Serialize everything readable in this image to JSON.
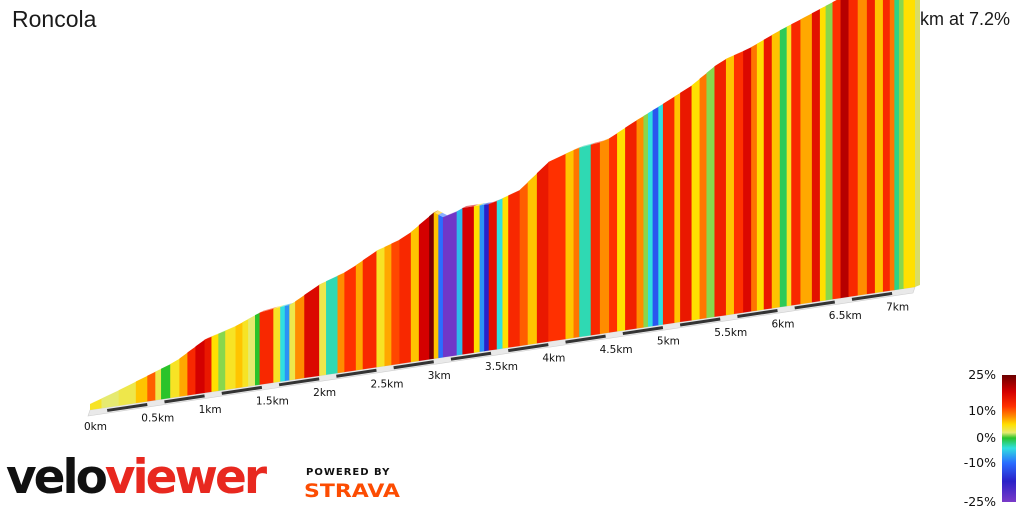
{
  "header": {
    "segment_name": "Roncola",
    "summary": "7.2 km at 7.2%"
  },
  "chart_data": {
    "type": "area",
    "distance_unit": "km",
    "total_distance_km": 7.2,
    "average_gradient_pct": 7.2,
    "x_ticks": [
      "0km",
      "0.5km",
      "1km",
      "1.5km",
      "2km",
      "2.5km",
      "3km",
      "3.5km",
      "4km",
      "4.5km",
      "5km",
      "5.5km",
      "6km",
      "6.5km",
      "7km"
    ],
    "x_tick_values_km": [
      0,
      0.5,
      1,
      1.5,
      2,
      2.5,
      3,
      3.5,
      4,
      4.5,
      5,
      5.5,
      6,
      6.5,
      7
    ],
    "color_scale": {
      "labels": [
        "25%",
        "10%",
        "0%",
        "-10%",
        "-25%"
      ],
      "values": [
        25,
        10,
        0,
        -10,
        -25
      ],
      "colors": [
        "#6b0000",
        "#d40000",
        "#ff3000",
        "#ff8c00",
        "#ffe000",
        "#e6ea70",
        "#2ac32a",
        "#30e0e0",
        "#2a6dff",
        "#2a20c8",
        "#7a3ac8"
      ]
    },
    "profile_km": [
      0,
      0.25,
      0.5,
      0.75,
      1,
      1.25,
      1.5,
      1.75,
      2,
      2.25,
      2.5,
      2.75,
      3,
      3.1,
      3.25,
      3.5,
      3.75,
      4,
      4.25,
      4.5,
      4.75,
      5,
      5.25,
      5.5,
      5.75,
      6,
      6.25,
      6.5,
      6.75,
      7,
      7.2
    ],
    "profile_elevation_m": [
      0,
      12,
      25,
      38,
      60,
      70,
      85,
      88,
      108,
      120,
      140,
      152,
      178,
      168,
      178,
      178,
      190,
      220,
      232,
      236,
      255,
      272,
      290,
      315,
      326,
      342,
      356,
      370,
      385,
      400,
      408
    ],
    "gradient_bands": [
      {
        "from_km": 0.0,
        "to_km": 0.1,
        "gradient_pct": 4
      },
      {
        "from_km": 0.1,
        "to_km": 0.25,
        "gradient_pct": 2
      },
      {
        "from_km": 0.25,
        "to_km": 0.4,
        "gradient_pct": 3
      },
      {
        "from_km": 0.4,
        "to_km": 0.5,
        "gradient_pct": 6
      },
      {
        "from_km": 0.5,
        "to_km": 0.57,
        "gradient_pct": 10
      },
      {
        "from_km": 0.57,
        "to_km": 0.62,
        "gradient_pct": 3
      },
      {
        "from_km": 0.62,
        "to_km": 0.7,
        "gradient_pct": 0
      },
      {
        "from_km": 0.7,
        "to_km": 0.78,
        "gradient_pct": 4
      },
      {
        "from_km": 0.78,
        "to_km": 0.85,
        "gradient_pct": 7
      },
      {
        "from_km": 0.85,
        "to_km": 0.92,
        "gradient_pct": 13
      },
      {
        "from_km": 0.92,
        "to_km": 1.0,
        "gradient_pct": 18
      },
      {
        "from_km": 1.0,
        "to_km": 1.06,
        "gradient_pct": 15
      },
      {
        "from_km": 1.06,
        "to_km": 1.12,
        "gradient_pct": 5
      },
      {
        "from_km": 1.12,
        "to_km": 1.18,
        "gradient_pct": 1
      },
      {
        "from_km": 1.18,
        "to_km": 1.27,
        "gradient_pct": 4
      },
      {
        "from_km": 1.27,
        "to_km": 1.33,
        "gradient_pct": 6
      },
      {
        "from_km": 1.33,
        "to_km": 1.38,
        "gradient_pct": 4
      },
      {
        "from_km": 1.38,
        "to_km": 1.44,
        "gradient_pct": 2
      },
      {
        "from_km": 1.44,
        "to_km": 1.48,
        "gradient_pct": 0
      },
      {
        "from_km": 1.48,
        "to_km": 1.6,
        "gradient_pct": 13
      },
      {
        "from_km": 1.6,
        "to_km": 1.66,
        "gradient_pct": 4
      },
      {
        "from_km": 1.66,
        "to_km": 1.7,
        "gradient_pct": -4
      },
      {
        "from_km": 1.7,
        "to_km": 1.74,
        "gradient_pct": -8
      },
      {
        "from_km": 1.74,
        "to_km": 1.79,
        "gradient_pct": 3
      },
      {
        "from_km": 1.79,
        "to_km": 1.87,
        "gradient_pct": 8
      },
      {
        "from_km": 1.87,
        "to_km": 2.0,
        "gradient_pct": 17
      },
      {
        "from_km": 2.0,
        "to_km": 2.06,
        "gradient_pct": 3
      },
      {
        "from_km": 2.06,
        "to_km": 2.16,
        "gradient_pct": -3
      },
      {
        "from_km": 2.16,
        "to_km": 2.22,
        "gradient_pct": 8
      },
      {
        "from_km": 2.22,
        "to_km": 2.32,
        "gradient_pct": 12
      },
      {
        "from_km": 2.32,
        "to_km": 2.38,
        "gradient_pct": 7
      },
      {
        "from_km": 2.38,
        "to_km": 2.5,
        "gradient_pct": 13
      },
      {
        "from_km": 2.5,
        "to_km": 2.57,
        "gradient_pct": 4
      },
      {
        "from_km": 2.57,
        "to_km": 2.63,
        "gradient_pct": 7
      },
      {
        "from_km": 2.63,
        "to_km": 2.7,
        "gradient_pct": 11
      },
      {
        "from_km": 2.7,
        "to_km": 2.8,
        "gradient_pct": 13
      },
      {
        "from_km": 2.8,
        "to_km": 2.87,
        "gradient_pct": 6
      },
      {
        "from_km": 2.87,
        "to_km": 2.96,
        "gradient_pct": 18
      },
      {
        "from_km": 2.96,
        "to_km": 3.0,
        "gradient_pct": 24
      },
      {
        "from_km": 3.0,
        "to_km": 3.04,
        "gradient_pct": 6
      },
      {
        "from_km": 3.04,
        "to_km": 3.08,
        "gradient_pct": -10
      },
      {
        "from_km": 3.08,
        "to_km": 3.2,
        "gradient_pct": -24
      },
      {
        "from_km": 3.2,
        "to_km": 3.25,
        "gradient_pct": -6
      },
      {
        "from_km": 3.25,
        "to_km": 3.35,
        "gradient_pct": 18
      },
      {
        "from_km": 3.35,
        "to_km": 3.4,
        "gradient_pct": 5
      },
      {
        "from_km": 3.4,
        "to_km": 3.44,
        "gradient_pct": -8
      },
      {
        "from_km": 3.44,
        "to_km": 3.48,
        "gradient_pct": -17
      },
      {
        "from_km": 3.48,
        "to_km": 3.55,
        "gradient_pct": 16
      },
      {
        "from_km": 3.55,
        "to_km": 3.6,
        "gradient_pct": -4
      },
      {
        "from_km": 3.6,
        "to_km": 3.65,
        "gradient_pct": 5
      },
      {
        "from_km": 3.65,
        "to_km": 3.75,
        "gradient_pct": 13
      },
      {
        "from_km": 3.75,
        "to_km": 3.82,
        "gradient_pct": 10
      },
      {
        "from_km": 3.82,
        "to_km": 3.9,
        "gradient_pct": 6
      },
      {
        "from_km": 3.9,
        "to_km": 4.0,
        "gradient_pct": 15
      },
      {
        "from_km": 4.0,
        "to_km": 4.15,
        "gradient_pct": 12
      },
      {
        "from_km": 4.15,
        "to_km": 4.22,
        "gradient_pct": 6
      },
      {
        "from_km": 4.22,
        "to_km": 4.27,
        "gradient_pct": 9
      },
      {
        "from_km": 4.27,
        "to_km": 4.37,
        "gradient_pct": -3
      },
      {
        "from_km": 4.37,
        "to_km": 4.45,
        "gradient_pct": 13
      },
      {
        "from_km": 4.45,
        "to_km": 4.53,
        "gradient_pct": 8
      },
      {
        "from_km": 4.53,
        "to_km": 4.6,
        "gradient_pct": 12
      },
      {
        "from_km": 4.6,
        "to_km": 4.67,
        "gradient_pct": 5
      },
      {
        "from_km": 4.67,
        "to_km": 4.77,
        "gradient_pct": 14
      },
      {
        "from_km": 4.77,
        "to_km": 4.83,
        "gradient_pct": 8
      },
      {
        "from_km": 4.83,
        "to_km": 4.87,
        "gradient_pct": 1
      },
      {
        "from_km": 4.87,
        "to_km": 4.91,
        "gradient_pct": -4
      },
      {
        "from_km": 4.91,
        "to_km": 4.96,
        "gradient_pct": -12
      },
      {
        "from_km": 4.96,
        "to_km": 5.0,
        "gradient_pct": -4
      },
      {
        "from_km": 5.0,
        "to_km": 5.1,
        "gradient_pct": 13
      },
      {
        "from_km": 5.1,
        "to_km": 5.15,
        "gradient_pct": 6
      },
      {
        "from_km": 5.15,
        "to_km": 5.25,
        "gradient_pct": 15
      },
      {
        "from_km": 5.25,
        "to_km": 5.32,
        "gradient_pct": 5
      },
      {
        "from_km": 5.32,
        "to_km": 5.38,
        "gradient_pct": 9
      },
      {
        "from_km": 5.38,
        "to_km": 5.45,
        "gradient_pct": 1
      },
      {
        "from_km": 5.45,
        "to_km": 5.55,
        "gradient_pct": 14
      },
      {
        "from_km": 5.55,
        "to_km": 5.62,
        "gradient_pct": 6
      },
      {
        "from_km": 5.62,
        "to_km": 5.7,
        "gradient_pct": 12
      },
      {
        "from_km": 5.7,
        "to_km": 5.77,
        "gradient_pct": 17
      },
      {
        "from_km": 5.77,
        "to_km": 5.82,
        "gradient_pct": 9
      },
      {
        "from_km": 5.82,
        "to_km": 5.88,
        "gradient_pct": 5
      },
      {
        "from_km": 5.88,
        "to_km": 5.95,
        "gradient_pct": 15
      },
      {
        "from_km": 5.95,
        "to_km": 6.02,
        "gradient_pct": 6
      },
      {
        "from_km": 6.02,
        "to_km": 6.08,
        "gradient_pct": -1
      },
      {
        "from_km": 6.08,
        "to_km": 6.12,
        "gradient_pct": 4
      },
      {
        "from_km": 6.12,
        "to_km": 6.2,
        "gradient_pct": 13
      },
      {
        "from_km": 6.2,
        "to_km": 6.3,
        "gradient_pct": 7
      },
      {
        "from_km": 6.3,
        "to_km": 6.37,
        "gradient_pct": 16
      },
      {
        "from_km": 6.37,
        "to_km": 6.42,
        "gradient_pct": 5
      },
      {
        "from_km": 6.42,
        "to_km": 6.48,
        "gradient_pct": 1
      },
      {
        "from_km": 6.48,
        "to_km": 6.55,
        "gradient_pct": 12
      },
      {
        "from_km": 6.55,
        "to_km": 6.62,
        "gradient_pct": 20
      },
      {
        "from_km": 6.62,
        "to_km": 6.7,
        "gradient_pct": 13
      },
      {
        "from_km": 6.7,
        "to_km": 6.78,
        "gradient_pct": 8
      },
      {
        "from_km": 6.78,
        "to_km": 6.85,
        "gradient_pct": 14
      },
      {
        "from_km": 6.85,
        "to_km": 6.92,
        "gradient_pct": 6
      },
      {
        "from_km": 6.92,
        "to_km": 6.98,
        "gradient_pct": 13
      },
      {
        "from_km": 6.98,
        "to_km": 7.02,
        "gradient_pct": 9
      },
      {
        "from_km": 7.02,
        "to_km": 7.06,
        "gradient_pct": -2
      },
      {
        "from_km": 7.06,
        "to_km": 7.1,
        "gradient_pct": 1
      },
      {
        "from_km": 7.1,
        "to_km": 7.2,
        "gradient_pct": 5
      }
    ]
  },
  "branding": {
    "logo_part_1": "velo",
    "logo_part_2": "viewer",
    "powered_by": "POWERED BY",
    "strava": "STRAVA",
    "logo_color": "#e8281f",
    "strava_color": "#fc4c02"
  }
}
